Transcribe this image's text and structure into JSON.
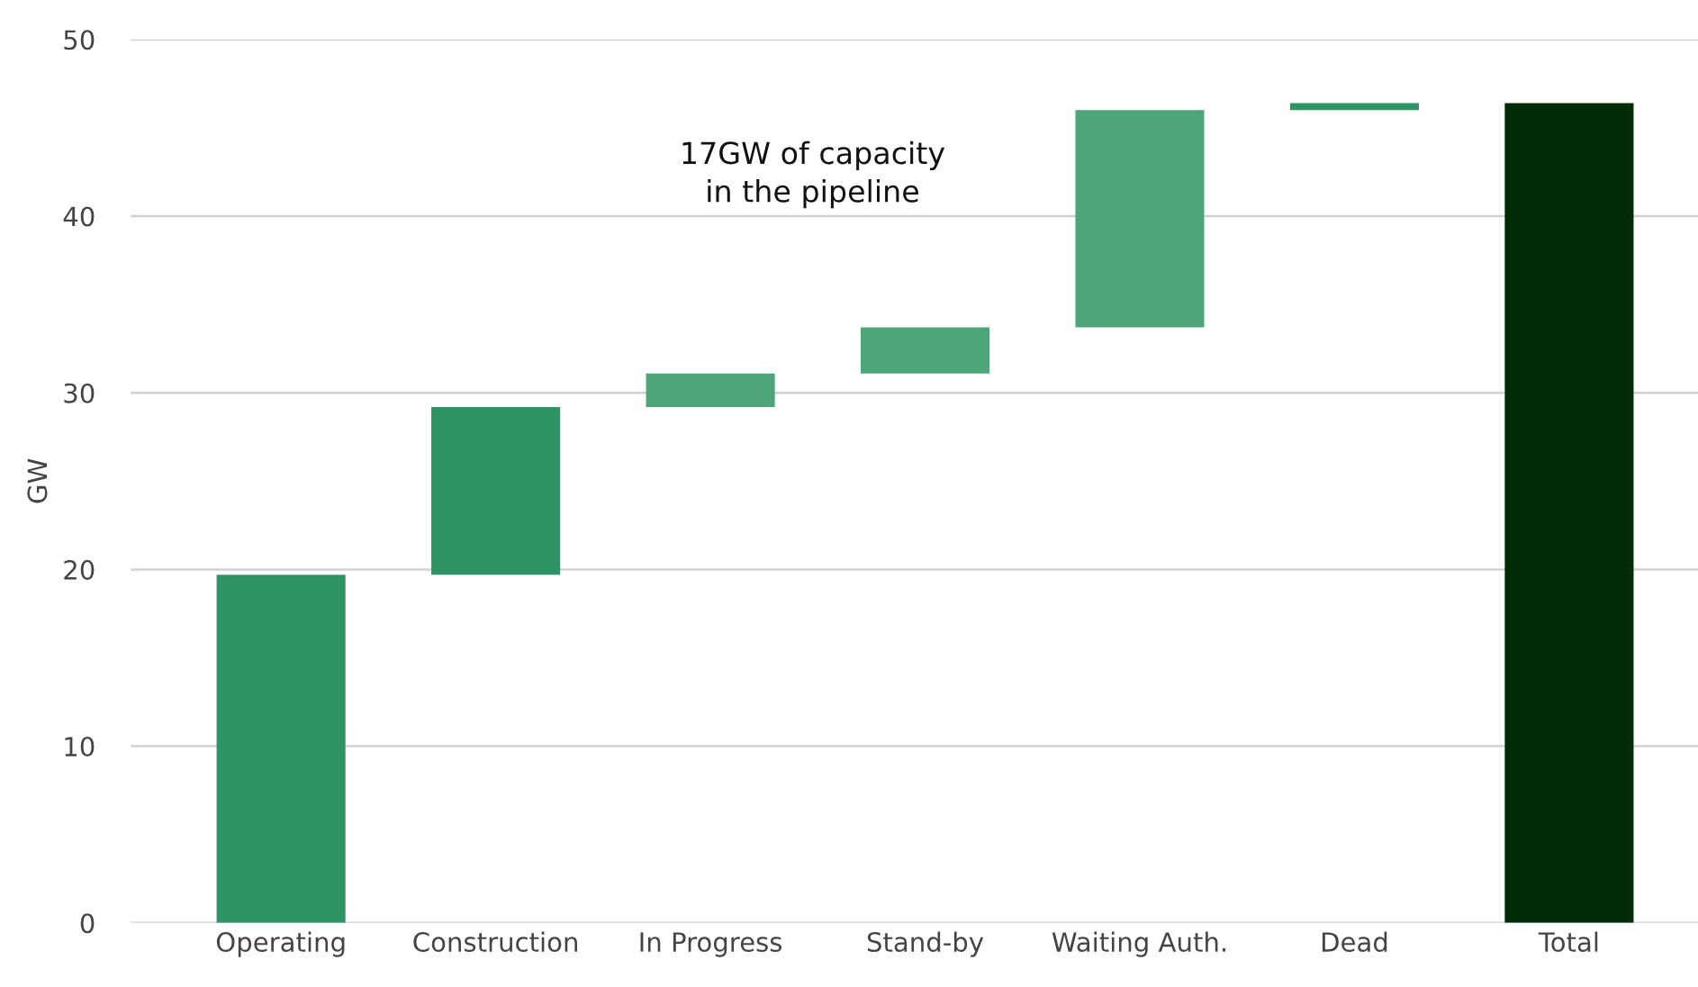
{
  "chart_data": {
    "type": "bar",
    "ylabel": "GW",
    "categories": [
      "Operating",
      "Construction",
      "In Progress",
      "Stand-by",
      "Waiting Auth.",
      "Dead",
      "Total"
    ],
    "values": [
      19.7,
      9.5,
      1.9,
      2.6,
      12.3,
      0.4,
      46.4
    ],
    "base": [
      0,
      19.7,
      29.2,
      31.1,
      33.7,
      46.0,
      0
    ],
    "colors": [
      "#2e9466",
      "#2e9466",
      "#4fa57a",
      "#4fa57a",
      "#4fa57a",
      "#2e9466",
      "#012d06"
    ],
    "ylim": [
      0,
      50
    ],
    "yticks": [
      0,
      10,
      20,
      30,
      40,
      50
    ],
    "grid": "y",
    "annotations": [
      "17GW of capacity\nin the pipeline"
    ]
  }
}
